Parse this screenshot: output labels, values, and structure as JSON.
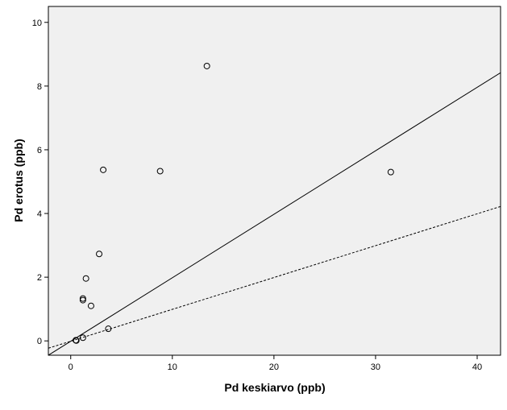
{
  "chart_data": {
    "type": "scatter",
    "title": "",
    "xlabel": "Pd keskiarvo (ppb)",
    "ylabel": "Pd erotus (ppb)",
    "xlim": [
      -2.2,
      42.3
    ],
    "ylim": [
      -0.45,
      10.5
    ],
    "x_ticks": [
      0,
      10,
      20,
      30,
      40
    ],
    "y_ticks": [
      0,
      2,
      4,
      6,
      8,
      10
    ],
    "x_tick_labels": [
      "0",
      "10",
      "20",
      "30",
      "40"
    ],
    "y_tick_labels": [
      "0",
      "2",
      "4",
      "6",
      "8",
      "10"
    ],
    "grid": false,
    "background_color": "#f0f0f0",
    "marker": "open-circle",
    "points": [
      {
        "x": 0.5,
        "y": 0.02
      },
      {
        "x": 0.55,
        "y": 0.01
      },
      {
        "x": 1.2,
        "y": 0.1
      },
      {
        "x": 1.2,
        "y": 1.33
      },
      {
        "x": 1.2,
        "y": 1.28
      },
      {
        "x": 1.5,
        "y": 1.96
      },
      {
        "x": 2.0,
        "y": 1.1
      },
      {
        "x": 2.8,
        "y": 2.73
      },
      {
        "x": 3.2,
        "y": 5.37
      },
      {
        "x": 3.7,
        "y": 0.38
      },
      {
        "x": 8.8,
        "y": 5.33
      },
      {
        "x": 13.4,
        "y": 8.63
      },
      {
        "x": 31.5,
        "y": 5.3
      }
    ],
    "lines": [
      {
        "style": "solid",
        "x": [
          -2.2,
          42.3
        ],
        "y": [
          -0.45,
          8.42
        ]
      },
      {
        "style": "dashed",
        "x": [
          -2.2,
          42.3
        ],
        "y": [
          -0.23,
          4.22
        ]
      }
    ]
  }
}
